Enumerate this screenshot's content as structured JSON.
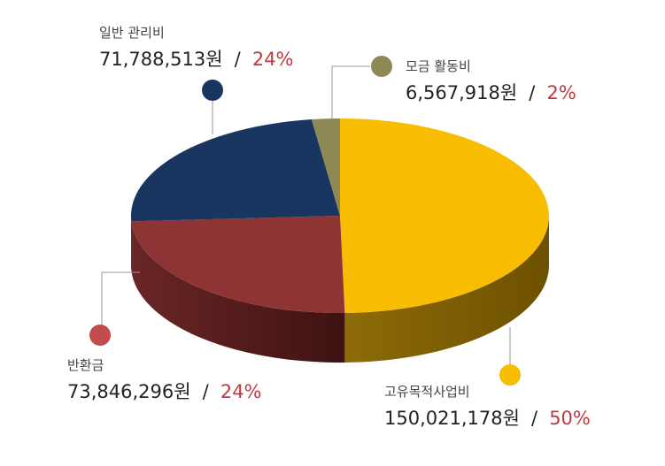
{
  "chart_data": {
    "type": "pie",
    "slices": [
      {
        "label": "고유목적사업비",
        "amount": "150,021,178원",
        "percent_text": "50%",
        "value": 150021178,
        "color": "#f8bc00",
        "side_dark": "#6e5100",
        "side_light": "#8c6b07"
      },
      {
        "label": "반환금",
        "amount": "73,846,296원",
        "percent_text": "24%",
        "value": 73846296,
        "color": "#8f3434",
        "side_dark": "#3e1212",
        "side_light": "#6b2626"
      },
      {
        "label": "일반 관리비",
        "amount": "71,788,513원",
        "percent_text": "24%",
        "value": 71788513,
        "color": "#18365f",
        "side_dark": "#0c1b30",
        "side_light": "#142c4e"
      },
      {
        "label": "모금 활동비",
        "amount": "6,567,918원",
        "percent_text": "2%",
        "value": 6567918,
        "color": "#8f8a55",
        "side_dark": "#4a4728",
        "side_light": "#6c683f"
      }
    ],
    "marker_colors": [
      "#f8bc00",
      "#c24b4b",
      "#18365f",
      "#8f8a55"
    ],
    "percent_color": "#c0393f"
  },
  "separator": "/"
}
